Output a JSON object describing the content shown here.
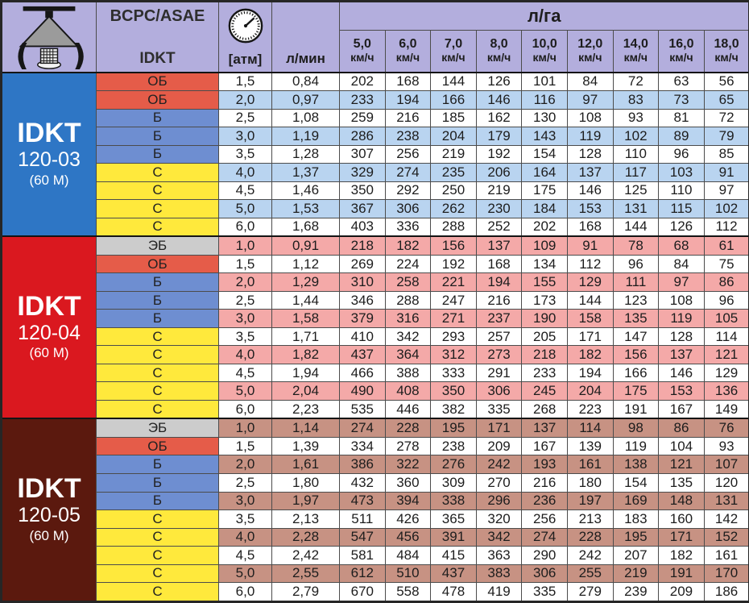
{
  "header": {
    "standard_label": "BCPC/ASAE",
    "nozzle_series": "IDKT",
    "pressure_unit": "[атм]",
    "flow_unit": "л/мин",
    "rate_unit": "л/га",
    "speed_unit": "км/ч",
    "speeds": [
      "5,0",
      "6,0",
      "7,0",
      "8,0",
      "10,0",
      "12,0",
      "14,0",
      "16,0",
      "18,0"
    ],
    "icons": [
      "spray-nozzle-icon",
      "pressure-gauge-icon"
    ]
  },
  "colors": {
    "header_bg": "#b3aedd",
    "border_dark": "#262626",
    "row_white": "#ffffff",
    "class_colors": {
      "ЭБ": "#cccccc",
      "ОБ": "#e55c49",
      "Б": "#6e8ed1",
      "С": "#ffe93c"
    }
  },
  "sections": [
    {
      "title": "IDKT",
      "model": "120-03",
      "note": "(60 M)",
      "bg": "#2e76c5",
      "stripe": "#b9d4f0",
      "stripe_phase": 1,
      "rows": [
        {
          "class": "ОБ",
          "atm": "1,5",
          "lmin": "0,84",
          "values": [
            202,
            168,
            144,
            126,
            101,
            84,
            72,
            63,
            56
          ]
        },
        {
          "class": "ОБ",
          "atm": "2,0",
          "lmin": "0,97",
          "values": [
            233,
            194,
            166,
            146,
            116,
            97,
            83,
            73,
            65
          ]
        },
        {
          "class": "Б",
          "atm": "2,5",
          "lmin": "1,08",
          "values": [
            259,
            216,
            185,
            162,
            130,
            108,
            93,
            81,
            72
          ]
        },
        {
          "class": "Б",
          "atm": "3,0",
          "lmin": "1,19",
          "values": [
            286,
            238,
            204,
            179,
            143,
            119,
            102,
            89,
            79
          ]
        },
        {
          "class": "Б",
          "atm": "3,5",
          "lmin": "1,28",
          "values": [
            307,
            256,
            219,
            192,
            154,
            128,
            110,
            96,
            85
          ]
        },
        {
          "class": "С",
          "atm": "4,0",
          "lmin": "1,37",
          "values": [
            329,
            274,
            235,
            206,
            164,
            137,
            117,
            103,
            91
          ]
        },
        {
          "class": "С",
          "atm": "4,5",
          "lmin": "1,46",
          "values": [
            350,
            292,
            250,
            219,
            175,
            146,
            125,
            110,
            97
          ]
        },
        {
          "class": "С",
          "atm": "5,0",
          "lmin": "1,53",
          "values": [
            367,
            306,
            262,
            230,
            184,
            153,
            131,
            115,
            102
          ]
        },
        {
          "class": "С",
          "atm": "6,0",
          "lmin": "1,68",
          "values": [
            403,
            336,
            288,
            252,
            202,
            168,
            144,
            126,
            112
          ]
        }
      ]
    },
    {
      "title": "IDKT",
      "model": "120-04",
      "note": "(60 M)",
      "bg": "#da181f",
      "stripe": "#f4a9a8",
      "stripe_phase": 0,
      "rows": [
        {
          "class": "ЭБ",
          "atm": "1,0",
          "lmin": "0,91",
          "values": [
            218,
            182,
            156,
            137,
            109,
            91,
            78,
            68,
            61
          ]
        },
        {
          "class": "ОБ",
          "atm": "1,5",
          "lmin": "1,12",
          "values": [
            269,
            224,
            192,
            168,
            134,
            112,
            96,
            84,
            75
          ]
        },
        {
          "class": "Б",
          "atm": "2,0",
          "lmin": "1,29",
          "values": [
            310,
            258,
            221,
            194,
            155,
            129,
            111,
            97,
            86
          ]
        },
        {
          "class": "Б",
          "atm": "2,5",
          "lmin": "1,44",
          "values": [
            346,
            288,
            247,
            216,
            173,
            144,
            123,
            108,
            96
          ]
        },
        {
          "class": "Б",
          "atm": "3,0",
          "lmin": "1,58",
          "values": [
            379,
            316,
            271,
            237,
            190,
            158,
            135,
            119,
            105
          ]
        },
        {
          "class": "С",
          "atm": "3,5",
          "lmin": "1,71",
          "values": [
            410,
            342,
            293,
            257,
            205,
            171,
            147,
            128,
            114
          ]
        },
        {
          "class": "С",
          "atm": "4,0",
          "lmin": "1,82",
          "values": [
            437,
            364,
            312,
            273,
            218,
            182,
            156,
            137,
            121
          ]
        },
        {
          "class": "С",
          "atm": "4,5",
          "lmin": "1,94",
          "values": [
            466,
            388,
            333,
            291,
            233,
            194,
            166,
            146,
            129
          ]
        },
        {
          "class": "С",
          "atm": "5,0",
          "lmin": "2,04",
          "values": [
            490,
            408,
            350,
            306,
            245,
            204,
            175,
            153,
            136
          ]
        },
        {
          "class": "С",
          "atm": "6,0",
          "lmin": "2,23",
          "values": [
            535,
            446,
            382,
            335,
            268,
            223,
            191,
            167,
            149
          ]
        }
      ]
    },
    {
      "title": "IDKT",
      "model": "120-05",
      "note": "(60 M)",
      "bg": "#5b190e",
      "stripe": "#c79283",
      "stripe_phase": 0,
      "rows": [
        {
          "class": "ЭБ",
          "atm": "1,0",
          "lmin": "1,14",
          "values": [
            274,
            228,
            195,
            171,
            137,
            114,
            98,
            86,
            76
          ]
        },
        {
          "class": "ОБ",
          "atm": "1,5",
          "lmin": "1,39",
          "values": [
            334,
            278,
            238,
            209,
            167,
            139,
            119,
            104,
            93
          ]
        },
        {
          "class": "Б",
          "atm": "2,0",
          "lmin": "1,61",
          "values": [
            386,
            322,
            276,
            242,
            193,
            161,
            138,
            121,
            107
          ]
        },
        {
          "class": "Б",
          "atm": "2,5",
          "lmin": "1,80",
          "values": [
            432,
            360,
            309,
            270,
            216,
            180,
            154,
            135,
            120
          ]
        },
        {
          "class": "Б",
          "atm": "3,0",
          "lmin": "1,97",
          "values": [
            473,
            394,
            338,
            296,
            236,
            197,
            169,
            148,
            131
          ]
        },
        {
          "class": "С",
          "atm": "3,5",
          "lmin": "2,13",
          "values": [
            511,
            426,
            365,
            320,
            256,
            213,
            183,
            160,
            142
          ]
        },
        {
          "class": "С",
          "atm": "4,0",
          "lmin": "2,28",
          "values": [
            547,
            456,
            391,
            342,
            274,
            228,
            195,
            171,
            152
          ]
        },
        {
          "class": "С",
          "atm": "4,5",
          "lmin": "2,42",
          "values": [
            581,
            484,
            415,
            363,
            290,
            242,
            207,
            182,
            161
          ]
        },
        {
          "class": "С",
          "atm": "5,0",
          "lmin": "2,55",
          "values": [
            612,
            510,
            437,
            383,
            306,
            255,
            219,
            191,
            170
          ]
        },
        {
          "class": "С",
          "atm": "6,0",
          "lmin": "2,79",
          "values": [
            670,
            558,
            478,
            419,
            335,
            279,
            239,
            209,
            186
          ]
        }
      ]
    }
  ]
}
